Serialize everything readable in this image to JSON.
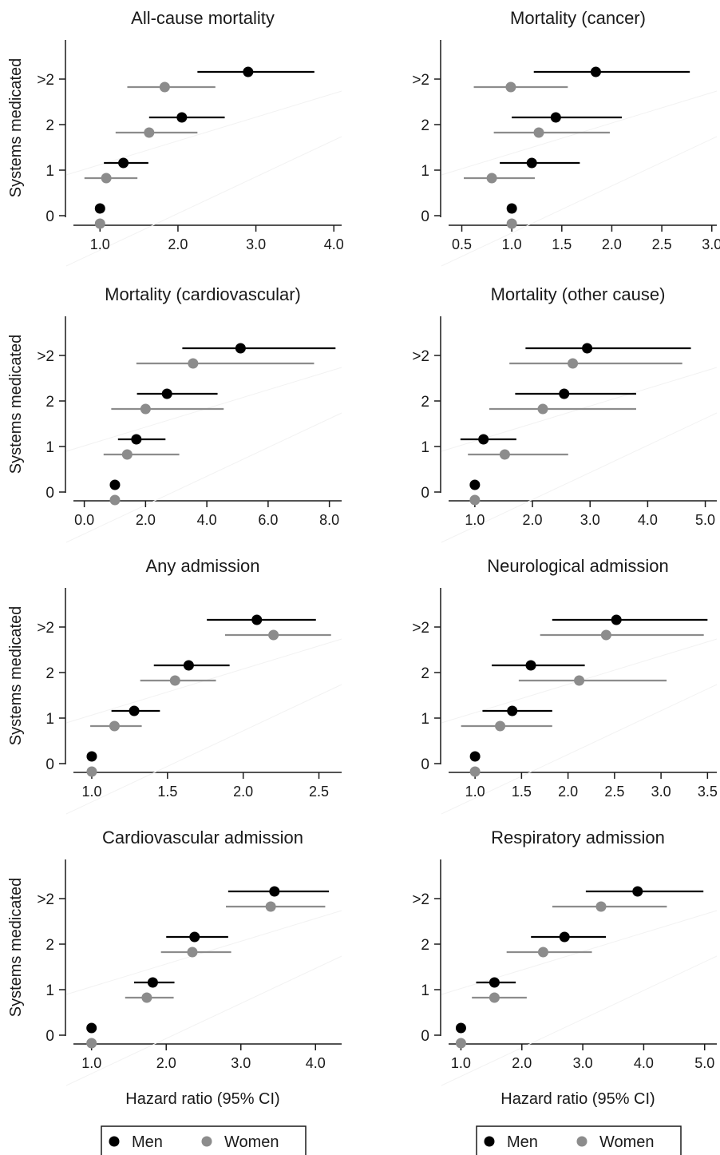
{
  "figure": {
    "y_axis_title": "Systems medicated",
    "x_axis_title": "Hazard ratio (95% CI)",
    "legend": [
      {
        "label": "Men",
        "color": "#000000"
      },
      {
        "label": "Women",
        "color": "#8c8c8c"
      }
    ]
  },
  "chart_data": [
    {
      "type": "scatter",
      "title": "All-cause mortality",
      "categories": [
        "0",
        "1",
        "2",
        ">2"
      ],
      "xlim": [
        0.7,
        4.1
      ],
      "xticks": [
        1.0,
        2.0,
        3.0,
        4.0
      ],
      "xtick_labels": [
        "1.0",
        "2.0",
        "3.0",
        "4.0"
      ],
      "series": [
        {
          "name": "Men",
          "color": "#000000",
          "values": [
            1.0,
            1.3,
            2.05,
            2.9
          ],
          "ci_low": [
            null,
            1.05,
            1.63,
            2.25
          ],
          "ci_high": [
            null,
            1.62,
            2.6,
            3.75
          ]
        },
        {
          "name": "Women",
          "color": "#8c8c8c",
          "values": [
            1.0,
            1.08,
            1.63,
            1.83
          ],
          "ci_low": [
            null,
            0.8,
            1.2,
            1.35
          ],
          "ci_high": [
            null,
            1.48,
            2.25,
            2.48
          ]
        }
      ]
    },
    {
      "type": "scatter",
      "title": "Mortality (cancer)",
      "categories": [
        "0",
        "1",
        "2",
        ">2"
      ],
      "xlim": [
        0.4,
        3.05
      ],
      "xticks": [
        0.5,
        1.0,
        1.5,
        2.0,
        2.5,
        3.0
      ],
      "xtick_labels": [
        "0.5",
        "1.0",
        "1.5",
        "2.0",
        "2.5",
        "3.0"
      ],
      "series": [
        {
          "name": "Men",
          "color": "#000000",
          "values": [
            1.0,
            1.2,
            1.44,
            1.84
          ],
          "ci_low": [
            null,
            0.88,
            1.0,
            1.22
          ],
          "ci_high": [
            null,
            1.68,
            2.1,
            2.78
          ]
        },
        {
          "name": "Women",
          "color": "#8c8c8c",
          "values": [
            1.0,
            0.8,
            1.27,
            0.99
          ],
          "ci_low": [
            null,
            0.52,
            0.82,
            0.62
          ],
          "ci_high": [
            null,
            1.23,
            1.98,
            1.56
          ]
        }
      ]
    },
    {
      "type": "scatter",
      "title": "Mortality (cardiovascular)",
      "categories": [
        "0",
        "1",
        "2",
        ">2"
      ],
      "xlim": [
        -0.25,
        8.4
      ],
      "xticks": [
        0.0,
        2.0,
        4.0,
        6.0,
        8.0
      ],
      "xtick_labels": [
        "0.0",
        "2.0",
        "4.0",
        "6.0",
        "8.0"
      ],
      "series": [
        {
          "name": "Men",
          "color": "#000000",
          "values": [
            1.0,
            1.7,
            2.7,
            5.1
          ],
          "ci_low": [
            null,
            1.1,
            1.72,
            3.2
          ],
          "ci_high": [
            null,
            2.65,
            4.35,
            8.2
          ]
        },
        {
          "name": "Women",
          "color": "#8c8c8c",
          "values": [
            1.0,
            1.4,
            2.0,
            3.55
          ],
          "ci_low": [
            null,
            0.63,
            0.88,
            1.7
          ],
          "ci_high": [
            null,
            3.1,
            4.55,
            7.5
          ]
        }
      ]
    },
    {
      "type": "scatter",
      "title": "Mortality (other cause)",
      "categories": [
        "0",
        "1",
        "2",
        ">2"
      ],
      "xlim": [
        0.6,
        5.2
      ],
      "xticks": [
        1.0,
        2.0,
        3.0,
        4.0,
        5.0
      ],
      "xtick_labels": [
        "1.0",
        "2.0",
        "3.0",
        "4.0",
        "5.0"
      ],
      "series": [
        {
          "name": "Men",
          "color": "#000000",
          "values": [
            1.0,
            1.15,
            2.55,
            2.95
          ],
          "ci_low": [
            null,
            0.75,
            1.7,
            1.88
          ],
          "ci_high": [
            null,
            1.72,
            3.8,
            4.75
          ]
        },
        {
          "name": "Women",
          "color": "#8c8c8c",
          "values": [
            1.0,
            1.52,
            2.18,
            2.7
          ],
          "ci_low": [
            null,
            0.88,
            1.25,
            1.6
          ],
          "ci_high": [
            null,
            2.62,
            3.8,
            4.6
          ]
        }
      ]
    },
    {
      "type": "scatter",
      "title": "Any admission",
      "categories": [
        "0",
        "1",
        "2",
        ">2"
      ],
      "xlim": [
        0.9,
        2.65
      ],
      "xticks": [
        1.0,
        1.5,
        2.0,
        2.5
      ],
      "xtick_labels": [
        "1.0",
        "1.5",
        "2.0",
        "2.5"
      ],
      "series": [
        {
          "name": "Men",
          "color": "#000000",
          "values": [
            1.0,
            1.28,
            1.64,
            2.09
          ],
          "ci_low": [
            null,
            1.13,
            1.41,
            1.76
          ],
          "ci_high": [
            null,
            1.45,
            1.91,
            2.48
          ]
        },
        {
          "name": "Women",
          "color": "#8c8c8c",
          "values": [
            1.0,
            1.15,
            1.55,
            2.2
          ],
          "ci_low": [
            null,
            0.99,
            1.32,
            1.88
          ],
          "ci_high": [
            null,
            1.33,
            1.82,
            2.58
          ]
        }
      ]
    },
    {
      "type": "scatter",
      "title": "Neurological admission",
      "categories": [
        "0",
        "1",
        "2",
        ">2"
      ],
      "xlim": [
        0.75,
        3.6
      ],
      "xticks": [
        1.0,
        1.5,
        2.0,
        2.5,
        3.0,
        3.5
      ],
      "xtick_labels": [
        "1.0",
        "1.5",
        "2.0",
        "2.5",
        "3.0",
        "3.5"
      ],
      "series": [
        {
          "name": "Men",
          "color": "#000000",
          "values": [
            1.0,
            1.4,
            1.6,
            2.52
          ],
          "ci_low": [
            null,
            1.08,
            1.18,
            1.83
          ],
          "ci_high": [
            null,
            1.83,
            2.18,
            3.5
          ]
        },
        {
          "name": "Women",
          "color": "#8c8c8c",
          "values": [
            1.0,
            1.27,
            2.12,
            2.41
          ],
          "ci_low": [
            null,
            0.85,
            1.47,
            1.7
          ],
          "ci_high": [
            null,
            1.83,
            3.06,
            3.46
          ]
        }
      ]
    },
    {
      "type": "scatter",
      "title": "Cardiovascular admission",
      "categories": [
        "0",
        "1",
        "2",
        ">2"
      ],
      "xlim": [
        0.8,
        4.35
      ],
      "xticks": [
        1.0,
        2.0,
        3.0,
        4.0
      ],
      "xtick_labels": [
        "1.0",
        "2.0",
        "3.0",
        "4.0"
      ],
      "series": [
        {
          "name": "Men",
          "color": "#000000",
          "values": [
            1.0,
            1.82,
            2.38,
            3.45
          ],
          "ci_low": [
            null,
            1.57,
            2.0,
            2.83
          ],
          "ci_high": [
            null,
            2.11,
            2.83,
            4.18
          ]
        },
        {
          "name": "Women",
          "color": "#8c8c8c",
          "values": [
            1.0,
            1.74,
            2.35,
            3.4
          ],
          "ci_low": [
            null,
            1.45,
            1.93,
            2.8
          ],
          "ci_high": [
            null,
            2.1,
            2.87,
            4.13
          ]
        }
      ]
    },
    {
      "type": "scatter",
      "title": "Respiratory admission",
      "categories": [
        "0",
        "1",
        "2",
        ">2"
      ],
      "xlim": [
        0.85,
        5.2
      ],
      "xticks": [
        1.0,
        2.0,
        3.0,
        4.0,
        5.0
      ],
      "xtick_labels": [
        "1.0",
        "2.0",
        "3.0",
        "4.0",
        "5.0"
      ],
      "series": [
        {
          "name": "Men",
          "color": "#000000",
          "values": [
            1.0,
            1.55,
            2.7,
            3.9
          ],
          "ci_low": [
            null,
            1.25,
            2.15,
            3.05
          ],
          "ci_high": [
            null,
            1.9,
            3.38,
            4.98
          ]
        },
        {
          "name": "Women",
          "color": "#8c8c8c",
          "values": [
            1.0,
            1.55,
            2.35,
            3.3
          ],
          "ci_low": [
            null,
            1.18,
            1.75,
            2.5
          ],
          "ci_high": [
            null,
            2.08,
            3.15,
            4.38
          ]
        }
      ]
    }
  ]
}
